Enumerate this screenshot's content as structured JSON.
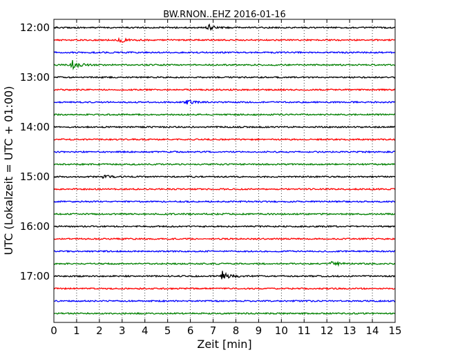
{
  "chart_data": {
    "type": "line",
    "title": "BW.RNON..EHZ 2016-01-16",
    "xlabel": "Zeit  [min]",
    "ylabel": "UTC (Lokalzeit = UTC + 01:00)",
    "xlim": [
      0,
      15
    ],
    "x_ticks": [
      "0",
      "1",
      "2",
      "3",
      "4",
      "5",
      "6",
      "7",
      "8",
      "9",
      "10",
      "11",
      "12",
      "13",
      "14",
      "15"
    ],
    "y_ticks": [
      "12:00",
      "13:00",
      "14:00",
      "15:00",
      "16:00",
      "17:00"
    ],
    "grid": "vertical-dotted",
    "colors": [
      "#000000",
      "#ff0000",
      "#0000ff",
      "#008000"
    ],
    "series": [
      {
        "start": "12:00",
        "color": "#000000",
        "events": [
          {
            "t": 6.8,
            "amp": 4
          }
        ]
      },
      {
        "start": "12:15",
        "color": "#ff0000",
        "events": [
          {
            "t": 2.9,
            "amp": 4
          }
        ]
      },
      {
        "start": "12:30",
        "color": "#0000ff",
        "events": []
      },
      {
        "start": "12:45",
        "color": "#008000",
        "events": [
          {
            "t": 0.8,
            "amp": 7
          }
        ]
      },
      {
        "start": "13:00",
        "color": "#000000",
        "events": []
      },
      {
        "start": "13:15",
        "color": "#ff0000",
        "events": []
      },
      {
        "start": "13:30",
        "color": "#0000ff",
        "events": [
          {
            "t": 5.8,
            "amp": 4
          }
        ]
      },
      {
        "start": "13:45",
        "color": "#008000",
        "events": []
      },
      {
        "start": "14:00",
        "color": "#000000",
        "events": []
      },
      {
        "start": "14:15",
        "color": "#ff0000",
        "events": []
      },
      {
        "start": "14:30",
        "color": "#0000ff",
        "events": []
      },
      {
        "start": "14:45",
        "color": "#008000",
        "events": []
      },
      {
        "start": "15:00",
        "color": "#000000",
        "events": [
          {
            "t": 2.2,
            "amp": 3
          }
        ]
      },
      {
        "start": "15:15",
        "color": "#ff0000",
        "events": []
      },
      {
        "start": "15:30",
        "color": "#0000ff",
        "events": []
      },
      {
        "start": "15:45",
        "color": "#008000",
        "events": []
      },
      {
        "start": "16:00",
        "color": "#000000",
        "events": []
      },
      {
        "start": "16:15",
        "color": "#ff0000",
        "events": []
      },
      {
        "start": "16:30",
        "color": "#0000ff",
        "events": []
      },
      {
        "start": "16:45",
        "color": "#008000",
        "events": [
          {
            "t": 12.2,
            "amp": 4
          }
        ]
      },
      {
        "start": "17:00",
        "color": "#000000",
        "events": [
          {
            "t": 7.4,
            "amp": 8
          }
        ]
      },
      {
        "start": "17:15",
        "color": "#ff0000",
        "events": []
      },
      {
        "start": "17:30",
        "color": "#0000ff",
        "events": []
      },
      {
        "start": "17:45",
        "color": "#008000",
        "events": []
      }
    ]
  }
}
